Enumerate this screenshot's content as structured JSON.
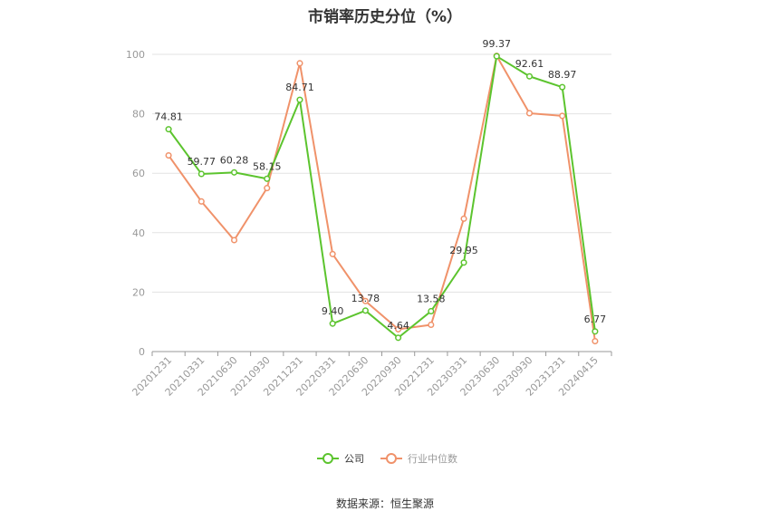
{
  "title": "市销率历史分位（%）",
  "source": "数据来源：恒生聚源",
  "colors": {
    "company": "#5cc42e",
    "industry": "#f0926a",
    "grid": "#e3e3e3",
    "axis": "#999999"
  },
  "chart_data": {
    "type": "line",
    "title": "市销率历史分位（%）",
    "xlabel": "",
    "ylabel": "",
    "ylim": [
      0,
      100
    ],
    "yticks": [
      0,
      20,
      40,
      60,
      80,
      100
    ],
    "grid": true,
    "legend_position": "bottom",
    "categories": [
      "20201231",
      "20210331",
      "20210630",
      "20210930",
      "20211231",
      "20220331",
      "20220630",
      "20220930",
      "20221231",
      "20230331",
      "20230630",
      "20230930",
      "20231231",
      "20240415"
    ],
    "series": [
      {
        "name": "公司",
        "color": "#5cc42e",
        "labeled": true,
        "values": [
          74.81,
          59.77,
          60.28,
          58.15,
          84.71,
          9.4,
          13.78,
          4.64,
          13.58,
          29.95,
          99.37,
          92.61,
          88.97,
          6.77
        ],
        "labels": [
          "74.81",
          "59.77",
          "60.28",
          "58.15",
          "84.71",
          "9.40",
          "13.78",
          "4.64",
          "13.58",
          "29.95",
          "99.37",
          "92.61",
          "88.97",
          "6.77"
        ]
      },
      {
        "name": "行业中位数",
        "color": "#f0926a",
        "labeled": false,
        "values": [
          66.0,
          50.5,
          37.5,
          55.0,
          97.0,
          32.8,
          17.0,
          7.5,
          9.0,
          44.7,
          99.5,
          80.2,
          79.3,
          3.5
        ]
      }
    ]
  }
}
